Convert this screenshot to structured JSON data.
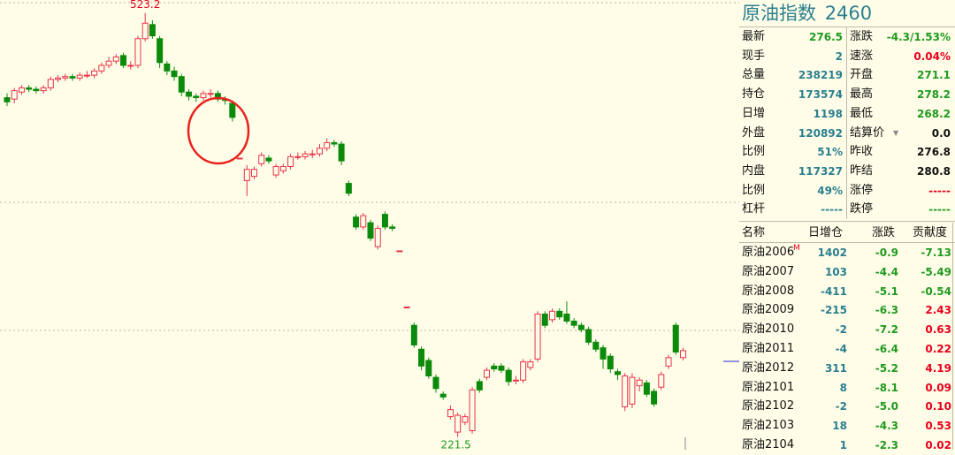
{
  "title": {
    "name": "原油指数",
    "code": "2460"
  },
  "quote": {
    "left": [
      {
        "label": "最新",
        "value": "276.5",
        "color": "green"
      },
      {
        "label": "现手",
        "value": "2",
        "color": "teal"
      },
      {
        "label": "总量",
        "value": "238219",
        "color": "teal"
      },
      {
        "label": "持仓",
        "value": "173574",
        "color": "teal"
      },
      {
        "label": "日增",
        "value": "1198",
        "color": "teal"
      },
      {
        "label": "外盘",
        "value": "120892",
        "color": "teal"
      },
      {
        "label": "比例",
        "value": "51%",
        "color": "teal"
      },
      {
        "label": "内盘",
        "value": "117327",
        "color": "teal"
      },
      {
        "label": "比例",
        "value": "49%",
        "color": "teal"
      },
      {
        "label": "杠杆",
        "value": "-----",
        "color": "teal"
      }
    ],
    "right": [
      {
        "label": "涨跌",
        "value": "-4.3/1.53%",
        "color": "green"
      },
      {
        "label": "速涨",
        "value": "0.04%",
        "color": "red"
      },
      {
        "label": "开盘",
        "value": "271.1",
        "color": "green"
      },
      {
        "label": "最高",
        "value": "278.2",
        "color": "green"
      },
      {
        "label": "最低",
        "value": "268.2",
        "color": "green"
      },
      {
        "label": "结算价",
        "value": "0.0",
        "color": "black"
      },
      {
        "label": "昨收",
        "value": "276.8",
        "color": "black"
      },
      {
        "label": "昨结",
        "value": "280.8",
        "color": "black"
      },
      {
        "label": "涨停",
        "value": "-----",
        "color": "red"
      },
      {
        "label": "跌停",
        "value": "-----",
        "color": "green"
      }
    ]
  },
  "table": {
    "headers": [
      "名称",
      "日增仓",
      "涨跌",
      "贡献度"
    ],
    "rows": [
      {
        "name": "原油2006",
        "mark": "M",
        "oi": "1402",
        "chg": "-0.9",
        "contrib": "-7.13",
        "cc": "green"
      },
      {
        "name": "原油2007",
        "mark": "",
        "oi": "103",
        "chg": "-4.4",
        "contrib": "-5.49",
        "cc": "green"
      },
      {
        "name": "原油2008",
        "mark": "",
        "oi": "-411",
        "chg": "-5.1",
        "contrib": "-0.54",
        "cc": "green"
      },
      {
        "name": "原油2009",
        "mark": "",
        "oi": "-215",
        "chg": "-6.3",
        "contrib": "2.43",
        "cc": "red"
      },
      {
        "name": "原油2010",
        "mark": "",
        "oi": "-2",
        "chg": "-7.2",
        "contrib": "0.63",
        "cc": "red"
      },
      {
        "name": "原油2011",
        "mark": "",
        "oi": "-4",
        "chg": "-6.4",
        "contrib": "0.22",
        "cc": "red"
      },
      {
        "name": "原油2012",
        "mark": "",
        "oi": "311",
        "chg": "-5.2",
        "contrib": "4.19",
        "cc": "red"
      },
      {
        "name": "原油2101",
        "mark": "",
        "oi": "8",
        "chg": "-8.1",
        "contrib": "0.09",
        "cc": "red"
      },
      {
        "name": "原油2102",
        "mark": "",
        "oi": "-2",
        "chg": "-5.0",
        "contrib": "0.10",
        "cc": "red"
      },
      {
        "name": "原油2103",
        "mark": "",
        "oi": "18",
        "chg": "-4.3",
        "contrib": "0.53",
        "cc": "red"
      },
      {
        "name": "原油2104",
        "mark": "",
        "oi": "1",
        "chg": "-2.3",
        "contrib": "0.02",
        "cc": "red"
      }
    ]
  },
  "chart": {
    "high_label": "523.2",
    "low_label": "221.5",
    "colors": {
      "up": "#e8334a",
      "down": "#0b8a0b",
      "bg": "#fffde8"
    }
  },
  "chart_data": {
    "type": "candlestick",
    "ylim": [
      215,
      530
    ],
    "candles": [
      {
        "o": 463,
        "c": 460,
        "h": 466,
        "l": 457
      },
      {
        "o": 462,
        "c": 468,
        "h": 470,
        "l": 459
      },
      {
        "o": 467,
        "c": 470,
        "h": 472,
        "l": 465
      },
      {
        "o": 470,
        "c": 469,
        "h": 472,
        "l": 467
      },
      {
        "o": 469,
        "c": 468,
        "h": 471,
        "l": 466
      },
      {
        "o": 468,
        "c": 470,
        "h": 472,
        "l": 466
      },
      {
        "o": 470,
        "c": 476,
        "h": 478,
        "l": 468
      },
      {
        "o": 476,
        "c": 477,
        "h": 479,
        "l": 474
      },
      {
        "o": 477,
        "c": 478,
        "h": 480,
        "l": 475
      },
      {
        "o": 478,
        "c": 477,
        "h": 480,
        "l": 475
      },
      {
        "o": 477,
        "c": 479,
        "h": 481,
        "l": 475
      },
      {
        "o": 479,
        "c": 479,
        "h": 482,
        "l": 477
      },
      {
        "o": 479,
        "c": 482,
        "h": 484,
        "l": 477
      },
      {
        "o": 482,
        "c": 486,
        "h": 488,
        "l": 480
      },
      {
        "o": 486,
        "c": 489,
        "h": 492,
        "l": 484
      },
      {
        "o": 489,
        "c": 492,
        "h": 494,
        "l": 487
      },
      {
        "o": 493,
        "c": 486,
        "h": 495,
        "l": 484
      },
      {
        "o": 486,
        "c": 486,
        "h": 489,
        "l": 483
      },
      {
        "o": 486,
        "c": 505,
        "h": 507,
        "l": 484
      },
      {
        "o": 505,
        "c": 516,
        "h": 523.2,
        "l": 503
      },
      {
        "o": 515,
        "c": 507,
        "h": 518,
        "l": 505
      },
      {
        "o": 505,
        "c": 488,
        "h": 507,
        "l": 484
      },
      {
        "o": 487,
        "c": 482,
        "h": 489,
        "l": 479
      },
      {
        "o": 482,
        "c": 478,
        "h": 485,
        "l": 475
      },
      {
        "o": 478,
        "c": 467,
        "h": 480,
        "l": 464
      },
      {
        "o": 467,
        "c": 464,
        "h": 469,
        "l": 461
      },
      {
        "o": 464,
        "c": 463,
        "h": 466,
        "l": 460
      },
      {
        "o": 463,
        "c": 466,
        "h": 468,
        "l": 461
      },
      {
        "o": 466,
        "c": 466,
        "h": 469,
        "l": 463
      },
      {
        "o": 466,
        "c": 462,
        "h": 468,
        "l": 460
      },
      {
        "o": 462,
        "c": 461,
        "h": 464,
        "l": 458
      },
      {
        "o": 459,
        "c": 449,
        "h": 461,
        "l": 446
      },
      {
        "o": 420,
        "c": 420,
        "h": 420,
        "l": 420
      },
      {
        "o": 404,
        "c": 412,
        "h": 415,
        "l": 393
      },
      {
        "o": 407,
        "c": 412,
        "h": 414,
        "l": 405
      },
      {
        "o": 416,
        "c": 422,
        "h": 424,
        "l": 414
      },
      {
        "o": 420,
        "c": 418,
        "h": 422,
        "l": 416
      },
      {
        "o": 408,
        "c": 414,
        "h": 416,
        "l": 406
      },
      {
        "o": 411,
        "c": 414,
        "h": 416,
        "l": 409
      },
      {
        "o": 414,
        "c": 421,
        "h": 423,
        "l": 412
      },
      {
        "o": 421,
        "c": 421,
        "h": 424,
        "l": 419
      },
      {
        "o": 421,
        "c": 423,
        "h": 425,
        "l": 419
      },
      {
        "o": 423,
        "c": 423,
        "h": 426,
        "l": 420
      },
      {
        "o": 423,
        "c": 427,
        "h": 430,
        "l": 421
      },
      {
        "o": 427,
        "c": 431,
        "h": 434,
        "l": 425
      },
      {
        "o": 431,
        "c": 430,
        "h": 433,
        "l": 428
      },
      {
        "o": 430,
        "c": 418,
        "h": 432,
        "l": 415
      },
      {
        "o": 402,
        "c": 395,
        "h": 404,
        "l": 393
      },
      {
        "o": 378,
        "c": 371,
        "h": 380,
        "l": 369
      },
      {
        "o": 371,
        "c": 379,
        "h": 381,
        "l": 369
      },
      {
        "o": 374,
        "c": 363,
        "h": 376,
        "l": 361
      },
      {
        "o": 357,
        "c": 370,
        "h": 372,
        "l": 355
      },
      {
        "o": 380,
        "c": 371,
        "h": 382,
        "l": 369
      },
      {
        "o": 371,
        "c": 370,
        "h": 373,
        "l": 368
      },
      {
        "o": 354,
        "c": 354,
        "h": 354,
        "l": 354
      },
      {
        "o": 314,
        "c": 314,
        "h": 314,
        "l": 314
      },
      {
        "o": 301,
        "c": 287,
        "h": 303,
        "l": 285
      },
      {
        "o": 284,
        "c": 272,
        "h": 286,
        "l": 269
      },
      {
        "o": 276,
        "c": 265,
        "h": 278,
        "l": 263
      },
      {
        "o": 264,
        "c": 256,
        "h": 266,
        "l": 253
      },
      {
        "o": 252,
        "c": 250,
        "h": 254,
        "l": 248
      },
      {
        "o": 236,
        "c": 241,
        "h": 244,
        "l": 234
      },
      {
        "o": 225,
        "c": 237,
        "h": 239,
        "l": 221.5
      },
      {
        "o": 232,
        "c": 236,
        "h": 238,
        "l": 230
      },
      {
        "o": 226,
        "c": 255,
        "h": 257,
        "l": 224
      },
      {
        "o": 261,
        "c": 255,
        "h": 263,
        "l": 253
      },
      {
        "o": 264,
        "c": 269,
        "h": 271,
        "l": 262
      },
      {
        "o": 272,
        "c": 270,
        "h": 274,
        "l": 268
      },
      {
        "o": 272,
        "c": 269,
        "h": 274,
        "l": 267
      },
      {
        "o": 269,
        "c": 261,
        "h": 271,
        "l": 258
      },
      {
        "o": 262,
        "c": 262,
        "h": 265,
        "l": 259
      },
      {
        "o": 262,
        "c": 275,
        "h": 277,
        "l": 260
      },
      {
        "o": 271,
        "c": 275,
        "h": 277,
        "l": 269
      },
      {
        "o": 277,
        "c": 309,
        "h": 311,
        "l": 275
      },
      {
        "o": 309,
        "c": 301,
        "h": 311,
        "l": 299
      },
      {
        "o": 305,
        "c": 311,
        "h": 313,
        "l": 303
      },
      {
        "o": 311,
        "c": 307,
        "h": 313,
        "l": 305
      },
      {
        "o": 309,
        "c": 304,
        "h": 318,
        "l": 302
      },
      {
        "o": 304,
        "c": 301,
        "h": 306,
        "l": 299
      },
      {
        "o": 301,
        "c": 298,
        "h": 303,
        "l": 296
      },
      {
        "o": 298,
        "c": 289,
        "h": 300,
        "l": 287
      },
      {
        "o": 289,
        "c": 284,
        "h": 291,
        "l": 282
      },
      {
        "o": 285,
        "c": 277,
        "h": 287,
        "l": 270
      },
      {
        "o": 279,
        "c": 270,
        "h": 281,
        "l": 267
      },
      {
        "o": 268,
        "c": 266,
        "h": 270,
        "l": 262
      },
      {
        "o": 243,
        "c": 265,
        "h": 267,
        "l": 240
      },
      {
        "o": 245,
        "c": 264,
        "h": 267,
        "l": 242
      },
      {
        "o": 258,
        "c": 262,
        "h": 264,
        "l": 254
      },
      {
        "o": 260,
        "c": 252,
        "h": 262,
        "l": 250
      },
      {
        "o": 254,
        "c": 245,
        "h": 256,
        "l": 243
      },
      {
        "o": 257,
        "c": 266,
        "h": 268,
        "l": 255
      },
      {
        "o": 272,
        "c": 278,
        "h": 280,
        "l": 270
      },
      {
        "o": 301,
        "c": 282,
        "h": 303,
        "l": 280
      },
      {
        "o": 278,
        "c": 283,
        "h": 285,
        "l": 276
      }
    ]
  }
}
